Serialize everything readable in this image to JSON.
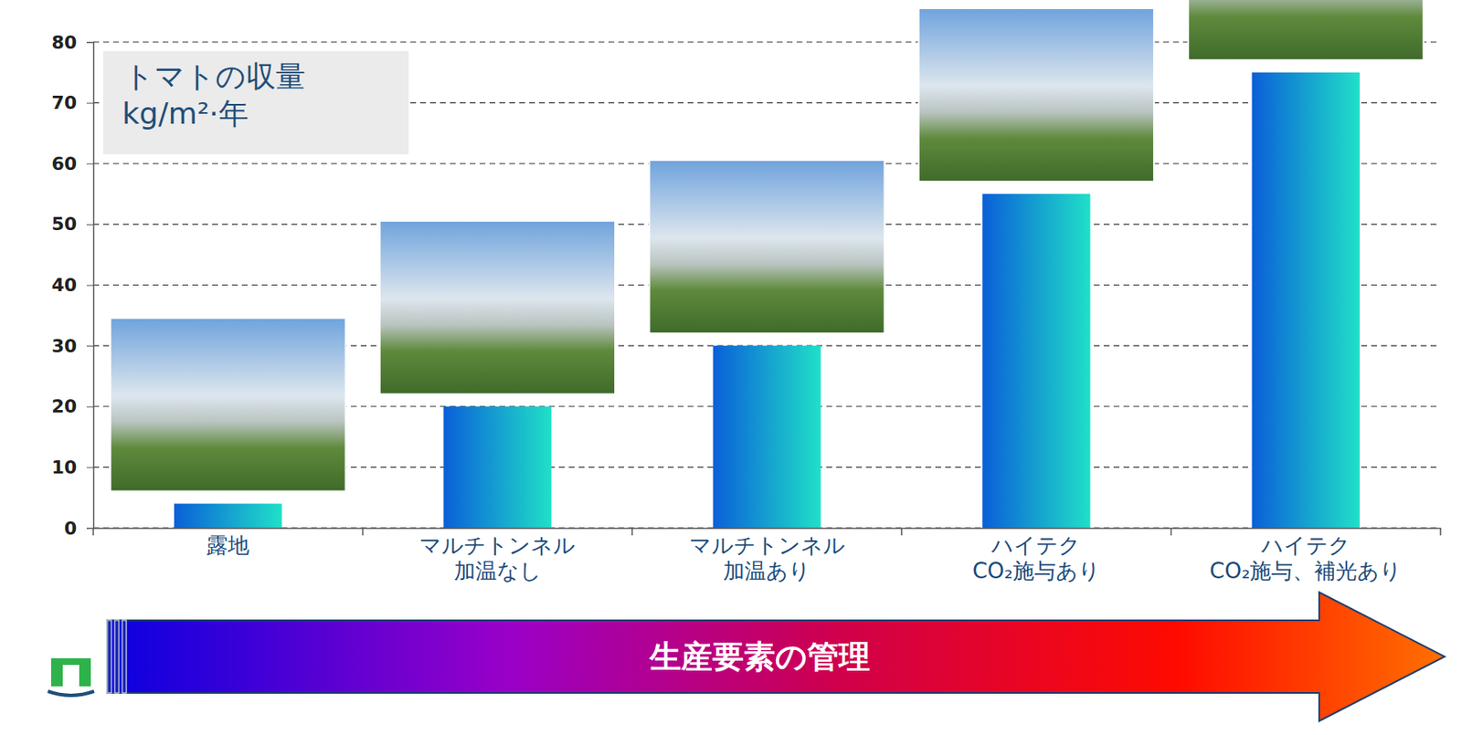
{
  "chart_data": {
    "type": "bar",
    "title": "トマトの収量",
    "subtitle": "kg/m²·年",
    "xlabel": "生産要素の管理",
    "categories": [
      "露地",
      "マルチトンネル\n加温なし",
      "マルチトンネル\n加温あり",
      "ハイテク\nCO₂施与あり",
      "ハイテク\nCO₂施与、補光あり"
    ],
    "values": [
      4,
      20,
      30,
      55,
      75
    ],
    "color": "#0a5fd8",
    "ylim": [
      0,
      80
    ],
    "yticks": [
      0,
      10,
      20,
      30,
      40,
      50,
      60,
      70,
      80
    ],
    "grid": true
  }
}
